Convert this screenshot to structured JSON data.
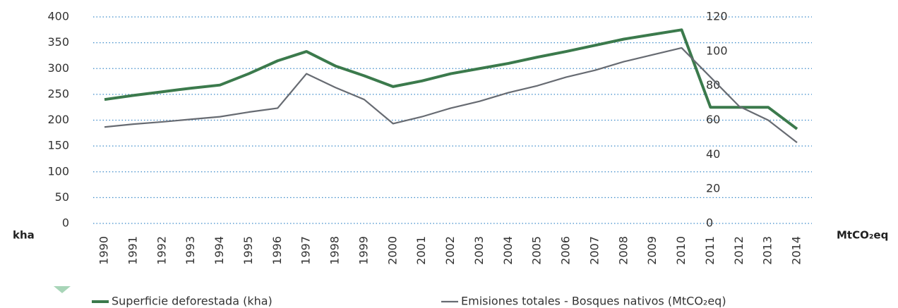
{
  "chart_data": {
    "type": "line",
    "categories": [
      "1990",
      "1991",
      "1992",
      "1993",
      "1994",
      "1995",
      "1996",
      "1997",
      "1998",
      "1999",
      "2000",
      "2001",
      "2002",
      "2003",
      "2004",
      "2005",
      "2006",
      "2007",
      "2008",
      "2009",
      "2010",
      "2011",
      "2012",
      "2013",
      "2014"
    ],
    "series": [
      {
        "name": "Superficie deforestada (kha)",
        "color": "#3b7a4c",
        "axis": "y",
        "values": [
          240,
          248,
          255,
          262,
          268,
          290,
          315,
          333,
          305,
          286,
          265,
          276,
          290,
          300,
          310,
          322,
          333,
          345,
          357,
          366,
          375,
          225,
          225,
          225,
          183
        ]
      },
      {
        "name": "Emisiones totales - Bosques nativos (MtCO₂eq)",
        "color": "#676b72",
        "axis": "y2",
        "values": [
          56,
          57.7,
          59,
          60.5,
          62,
          64.7,
          67,
          87,
          79,
          72,
          58,
          62,
          67,
          71,
          76,
          80,
          85,
          89,
          94,
          98,
          102,
          85,
          68,
          60,
          47
        ]
      }
    ],
    "ylabel": "kha",
    "y2label": "MtCO₂eq",
    "ylim": [
      0,
      400
    ],
    "yticks": [
      0,
      50,
      100,
      150,
      200,
      250,
      300,
      350,
      400
    ],
    "y2lim": [
      0,
      120
    ],
    "y2ticks": [
      0,
      20,
      40,
      60,
      80,
      100,
      120
    ],
    "grid": true
  }
}
